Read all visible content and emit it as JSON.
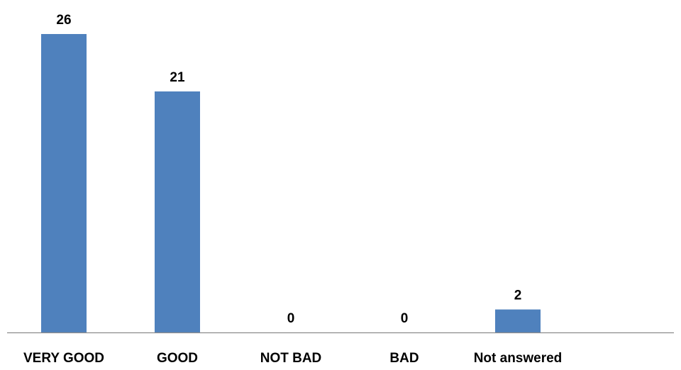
{
  "chart_data": {
    "type": "bar",
    "title": "",
    "xlabel": "",
    "ylabel": "",
    "categories": [
      "VERY GOOD",
      "GOOD",
      "NOT BAD",
      "BAD",
      "Not answered"
    ],
    "values": [
      26,
      21,
      0,
      0,
      2
    ],
    "data_labels": [
      "26",
      "21",
      "0",
      "0",
      "2"
    ],
    "ylim": [
      0,
      26
    ],
    "grid": false,
    "legend": "none",
    "bar_color": "#4f81bd",
    "axis_color": "#8c8c8c"
  }
}
